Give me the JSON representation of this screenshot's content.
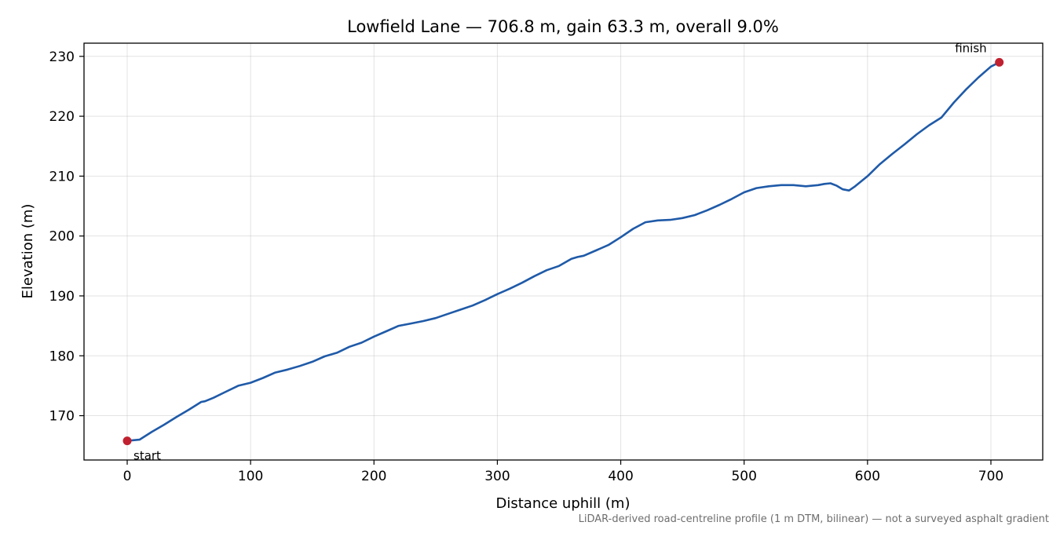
{
  "chart_data": {
    "type": "line",
    "title": "Lowfield Lane — 706.8 m, gain 63.3 m, overall 9.0%",
    "xlabel": "Distance uphill (m)",
    "ylabel": "Elevation (m)",
    "xlim": [
      -35,
      742
    ],
    "ylim": [
      162.6,
      232.2
    ],
    "xticks": [
      0,
      100,
      200,
      300,
      400,
      500,
      600,
      700
    ],
    "yticks": [
      170,
      180,
      190,
      200,
      210,
      220,
      230
    ],
    "grid": true,
    "series": [
      {
        "color": "#1f5aa8",
        "x": [
          0,
          10,
          20,
          30,
          40,
          50,
          60,
          63,
          70,
          80,
          90,
          100,
          110,
          120,
          130,
          140,
          150,
          160,
          170,
          180,
          190,
          200,
          210,
          220,
          230,
          240,
          250,
          260,
          270,
          280,
          290,
          300,
          310,
          320,
          330,
          340,
          350,
          360,
          365,
          370,
          380,
          390,
          400,
          410,
          420,
          430,
          440,
          450,
          460,
          470,
          480,
          490,
          500,
          510,
          520,
          530,
          540,
          550,
          560,
          565,
          570,
          575,
          580,
          585,
          590,
          600,
          610,
          620,
          630,
          640,
          650,
          660,
          670,
          680,
          690,
          700,
          706.8
        ],
        "y": [
          165.8,
          166.0,
          167.3,
          168.5,
          169.8,
          171.0,
          172.3,
          172.4,
          173.0,
          174.0,
          175.0,
          175.5,
          176.3,
          177.2,
          177.7,
          178.3,
          179.0,
          179.9,
          180.5,
          181.5,
          182.2,
          183.2,
          184.1,
          185.0,
          185.4,
          185.8,
          186.3,
          187.0,
          187.7,
          188.4,
          189.3,
          190.3,
          191.2,
          192.2,
          193.3,
          194.3,
          195.0,
          196.2,
          196.5,
          196.7,
          197.6,
          198.5,
          199.8,
          201.2,
          202.3,
          202.6,
          202.7,
          203.0,
          203.5,
          204.3,
          205.2,
          206.2,
          207.3,
          208.0,
          208.3,
          208.5,
          208.5,
          208.3,
          208.5,
          208.7,
          208.8,
          208.4,
          207.8,
          207.6,
          208.3,
          210.0,
          212.0,
          213.7,
          215.3,
          217.0,
          218.5,
          219.8,
          222.3,
          224.5,
          226.5,
          228.3,
          229.0
        ]
      }
    ],
    "markers": [
      {
        "label": "start",
        "x": 0,
        "y": 165.8,
        "color": "#c0202f"
      },
      {
        "label": "finish",
        "x": 706.8,
        "y": 229.0,
        "color": "#c0202f"
      }
    ],
    "footnote": "LiDAR-derived road-centreline profile (1 m DTM, bilinear) — not a surveyed asphalt gradient"
  }
}
